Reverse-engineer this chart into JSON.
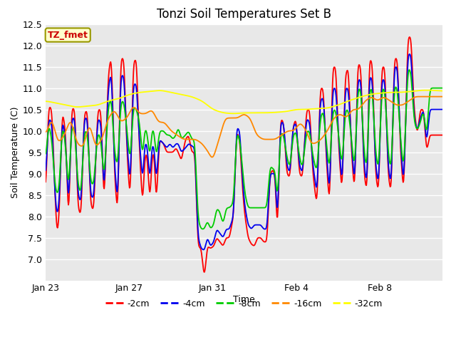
{
  "title": "Tonzi Soil Temperatures Set B",
  "xlabel": "Time",
  "ylabel": "Soil Temperature (C)",
  "ylim": [
    6.5,
    12.5
  ],
  "yticks": [
    7.0,
    7.5,
    8.0,
    8.5,
    9.0,
    9.5,
    10.0,
    10.5,
    11.0,
    11.5,
    12.0,
    12.5
  ],
  "xtick_labels": [
    "Jan 23",
    "Jan 27",
    "Jan 31",
    "Feb 4",
    "Feb 8"
  ],
  "xtick_positions": [
    0,
    4,
    8,
    12,
    16
  ],
  "n_days": 19,
  "annotation_text": "TZ_fmet",
  "annotation_color": "#cc0000",
  "annotation_bg": "#ffffcc",
  "annotation_border": "#999900",
  "plot_bg": "#e8e8e8",
  "fig_bg": "#ffffff",
  "line_colors": [
    "#ff0000",
    "#0000ee",
    "#00cc00",
    "#ff8800",
    "#ffff00"
  ],
  "line_labels": [
    "-2cm",
    "-4cm",
    "-8cm",
    "-16cm",
    "-32cm"
  ],
  "line_width": 1.3,
  "grid_color": "#ffffff",
  "grid_lw": 1.0
}
